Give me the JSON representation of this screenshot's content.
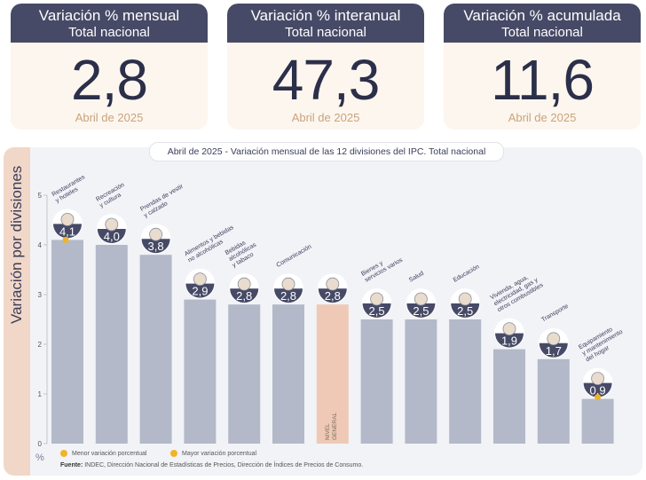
{
  "cards": [
    {
      "title": "Variación % mensual",
      "subtitle": "Total nacional",
      "value": "2,8",
      "period": "Abril de 2025"
    },
    {
      "title": "Variación % interanual",
      "subtitle": "Total nacional",
      "value": "47,3",
      "period": "Abril de 2025"
    },
    {
      "title": "Variación % acumulada",
      "subtitle": "Total nacional",
      "value": "11,6",
      "period": "Abril de 2025"
    }
  ],
  "colors": {
    "bar": "#b3b9c8",
    "general_bar": "#efc9b5",
    "bubble": "#474a66",
    "marker": "#f0b429"
  },
  "legend": {
    "min": "Menor variación porcentual",
    "max": "Mayor variación porcentual"
  },
  "source": {
    "label": "Fuente:",
    "text": "INDEC, Dirección Nacional de Estadísticas de Precios, Dirección de Índices de Precios de Consumo."
  },
  "chart_data": {
    "type": "bar",
    "title": "Abril de 2025 - Variación mensual de las 12 divisiones del IPC. Total nacional",
    "ylabel": "Variación por divisiones",
    "yunit": "%",
    "ylim": [
      0,
      5
    ],
    "yticks": [
      "0",
      "1",
      "2",
      "3",
      "4",
      "5"
    ],
    "grid": false,
    "categories": [
      "Restaurantes y hoteles",
      "Recreación y cultura",
      "Prendas de vestir y calzado",
      "Alimentos y bebidas no alcohólicas",
      "Bebidas alcohólicas y tabaco",
      "Comunicación",
      "NIVEL GENERAL",
      "Bienes y servicios varios",
      "Salud",
      "Educación",
      "Vivienda, agua, electricidad, gas y otros combustibles",
      "Transporte",
      "Equipamiento y mantenimiento del hogar"
    ],
    "values": [
      4.1,
      4.0,
      3.8,
      2.9,
      2.8,
      2.8,
      2.8,
      2.5,
      2.5,
      2.5,
      1.9,
      1.7,
      0.9
    ],
    "value_labels": [
      "4,1",
      "4,0",
      "3,8",
      "2,9",
      "2,8",
      "2,8",
      "2,8",
      "2,5",
      "2,5",
      "2,5",
      "1,9",
      "1,7",
      "0,9"
    ],
    "category_label_lines": [
      [
        "Restaurantes",
        "y hoteles"
      ],
      [
        "Recreación",
        "y cultura"
      ],
      [
        "Prendas de vestir",
        "y calzado"
      ],
      [
        "Alimentos y bebidas",
        "no alcohólicas"
      ],
      [
        "Bebidas",
        "alcohólicas",
        "y tabaco"
      ],
      [
        "Comunicación"
      ],
      [
        "NIVEL",
        "GENERAL"
      ],
      [
        "Bienes y",
        "servicios varios"
      ],
      [
        "Salud"
      ],
      [
        "Educación"
      ],
      [
        "Vivienda, agua,",
        "electricidad, gas y",
        "otros combustibles"
      ],
      [
        "Transporte"
      ],
      [
        "Equipamiento",
        "y mantenimiento",
        "del hogar"
      ]
    ],
    "highlight": "NIVEL GENERAL",
    "max_marker": "Restaurantes y hoteles",
    "min_marker": "Equipamiento y mantenimiento del hogar",
    "icons": [
      "cutlery-icon",
      "parasol-icon",
      "clothing-icon",
      "grocery-icon",
      "bottles-icon",
      "phone-icon",
      "basket-icon",
      "comb-icon",
      "medical-cross-icon",
      "notebook-icon",
      "lightbulb-icon",
      "bus-icon",
      "sofa-icon"
    ]
  }
}
